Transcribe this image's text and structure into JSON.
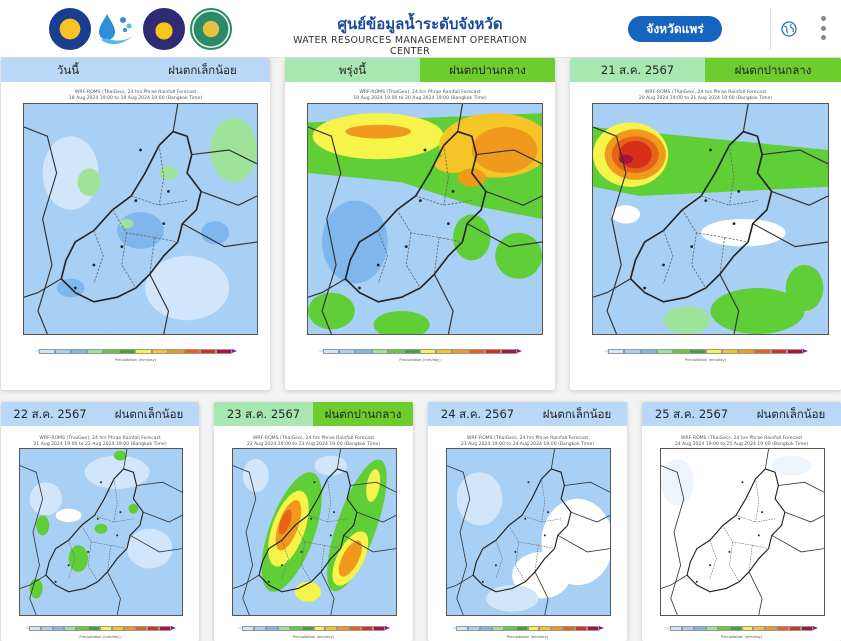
{
  "header": {
    "title_th": "ศูนย์ข้อมูลน้ำระดับจังหวัด",
    "title_en": "WATER RESOURCES MANAGEMENT OPERATION CENTER",
    "province_button": "จังหวัดแพร่",
    "logos": [
      "agency-seal-icon",
      "water-drop-logo-icon",
      "ministry-seal-icon",
      "department-seal-icon"
    ],
    "icons": [
      "globe-icon",
      "kebab-menu-icon"
    ]
  },
  "colors": {
    "brand_blue": "#1565c0",
    "level_light_bg": "#b9d8f7",
    "level_moderate_bg": "#6dcc2e",
    "date_bg_light": "#b9d8f7",
    "date_bg_green": "#a8e6b2"
  },
  "colorbar": {
    "colors": [
      "#ffffff",
      "#d2e6fb",
      "#a8cff4",
      "#7fb6ec",
      "#9fe39a",
      "#5fce37",
      "#3ba82f",
      "#f6f34a",
      "#f5c527",
      "#f09a1d",
      "#e8631a",
      "#d7301a",
      "#a9123b",
      "#7a1f9a"
    ],
    "label": "Precipitation (mm/day)"
  },
  "forecasts": [
    {
      "date_label": "วันนี้",
      "level_label": "ฝนตกเล็กน้อย",
      "level": "light",
      "map_title_1": "WRF-ROMS (ThaiGeo), 24 hrs Phrae Rainfall Forecast",
      "map_title_2": "18 Aug 2024 19:00 to 19 Aug 2024 19:00 (Bangkok Time)"
    },
    {
      "date_label": "พรุ่งนี้",
      "level_label": "ฝนตกปานกลาง",
      "level": "moderate",
      "map_title_1": "WRF-ROMS (ThaiGeo), 24 hrs Phrae Rainfall Forecast",
      "map_title_2": "19 Aug 2024 19:00 to 20 Aug 2024 19:00 (Bangkok Time)"
    },
    {
      "date_label": "21 ส.ค. 2567",
      "level_label": "ฝนตกปานกลาง",
      "level": "moderate",
      "map_title_1": "WRF-ROMS (ThaiGeo), 24 hrs Phrae Rainfall Forecast",
      "map_title_2": "20 Aug 2024 19:00 to 21 Aug 2024 19:00 (Bangkok Time)"
    },
    {
      "date_label": "22 ส.ค. 2567",
      "level_label": "ฝนตกเล็กน้อย",
      "level": "light",
      "map_title_1": "WRF-ROMS (ThaiGeo), 24 hrs Phrae Rainfall Forecast",
      "map_title_2": "21 Aug 2024 19:00 to 22 Aug 2024 19:00 (Bangkok Time)"
    },
    {
      "date_label": "23 ส.ค. 2567",
      "level_label": "ฝนตกปานกลาง",
      "level": "moderate",
      "map_title_1": "WRF-ROMS (ThaiGeo), 24 hrs Phrae Rainfall Forecast",
      "map_title_2": "22 Aug 2024 19:00 to 23 Aug 2024 19:00 (Bangkok Time)"
    },
    {
      "date_label": "24 ส.ค. 2567",
      "level_label": "ฝนตกเล็กน้อย",
      "level": "light",
      "map_title_1": "WRF-ROMS (ThaiGeo), 24 hrs Phrae Rainfall Forecast",
      "map_title_2": "23 Aug 2024 19:00 to 24 Aug 2024 19:00 (Bangkok Time)"
    },
    {
      "date_label": "25 ส.ค. 2567",
      "level_label": "ฝนตกเล็กน้อย",
      "level": "light",
      "map_title_1": "WRF-ROMS (ThaiGeo), 24 hrs Phrae Rainfall Forecast",
      "map_title_2": "24 Aug 2024 19:00 to 25 Aug 2024 19:00 (Bangkok Time)"
    }
  ]
}
